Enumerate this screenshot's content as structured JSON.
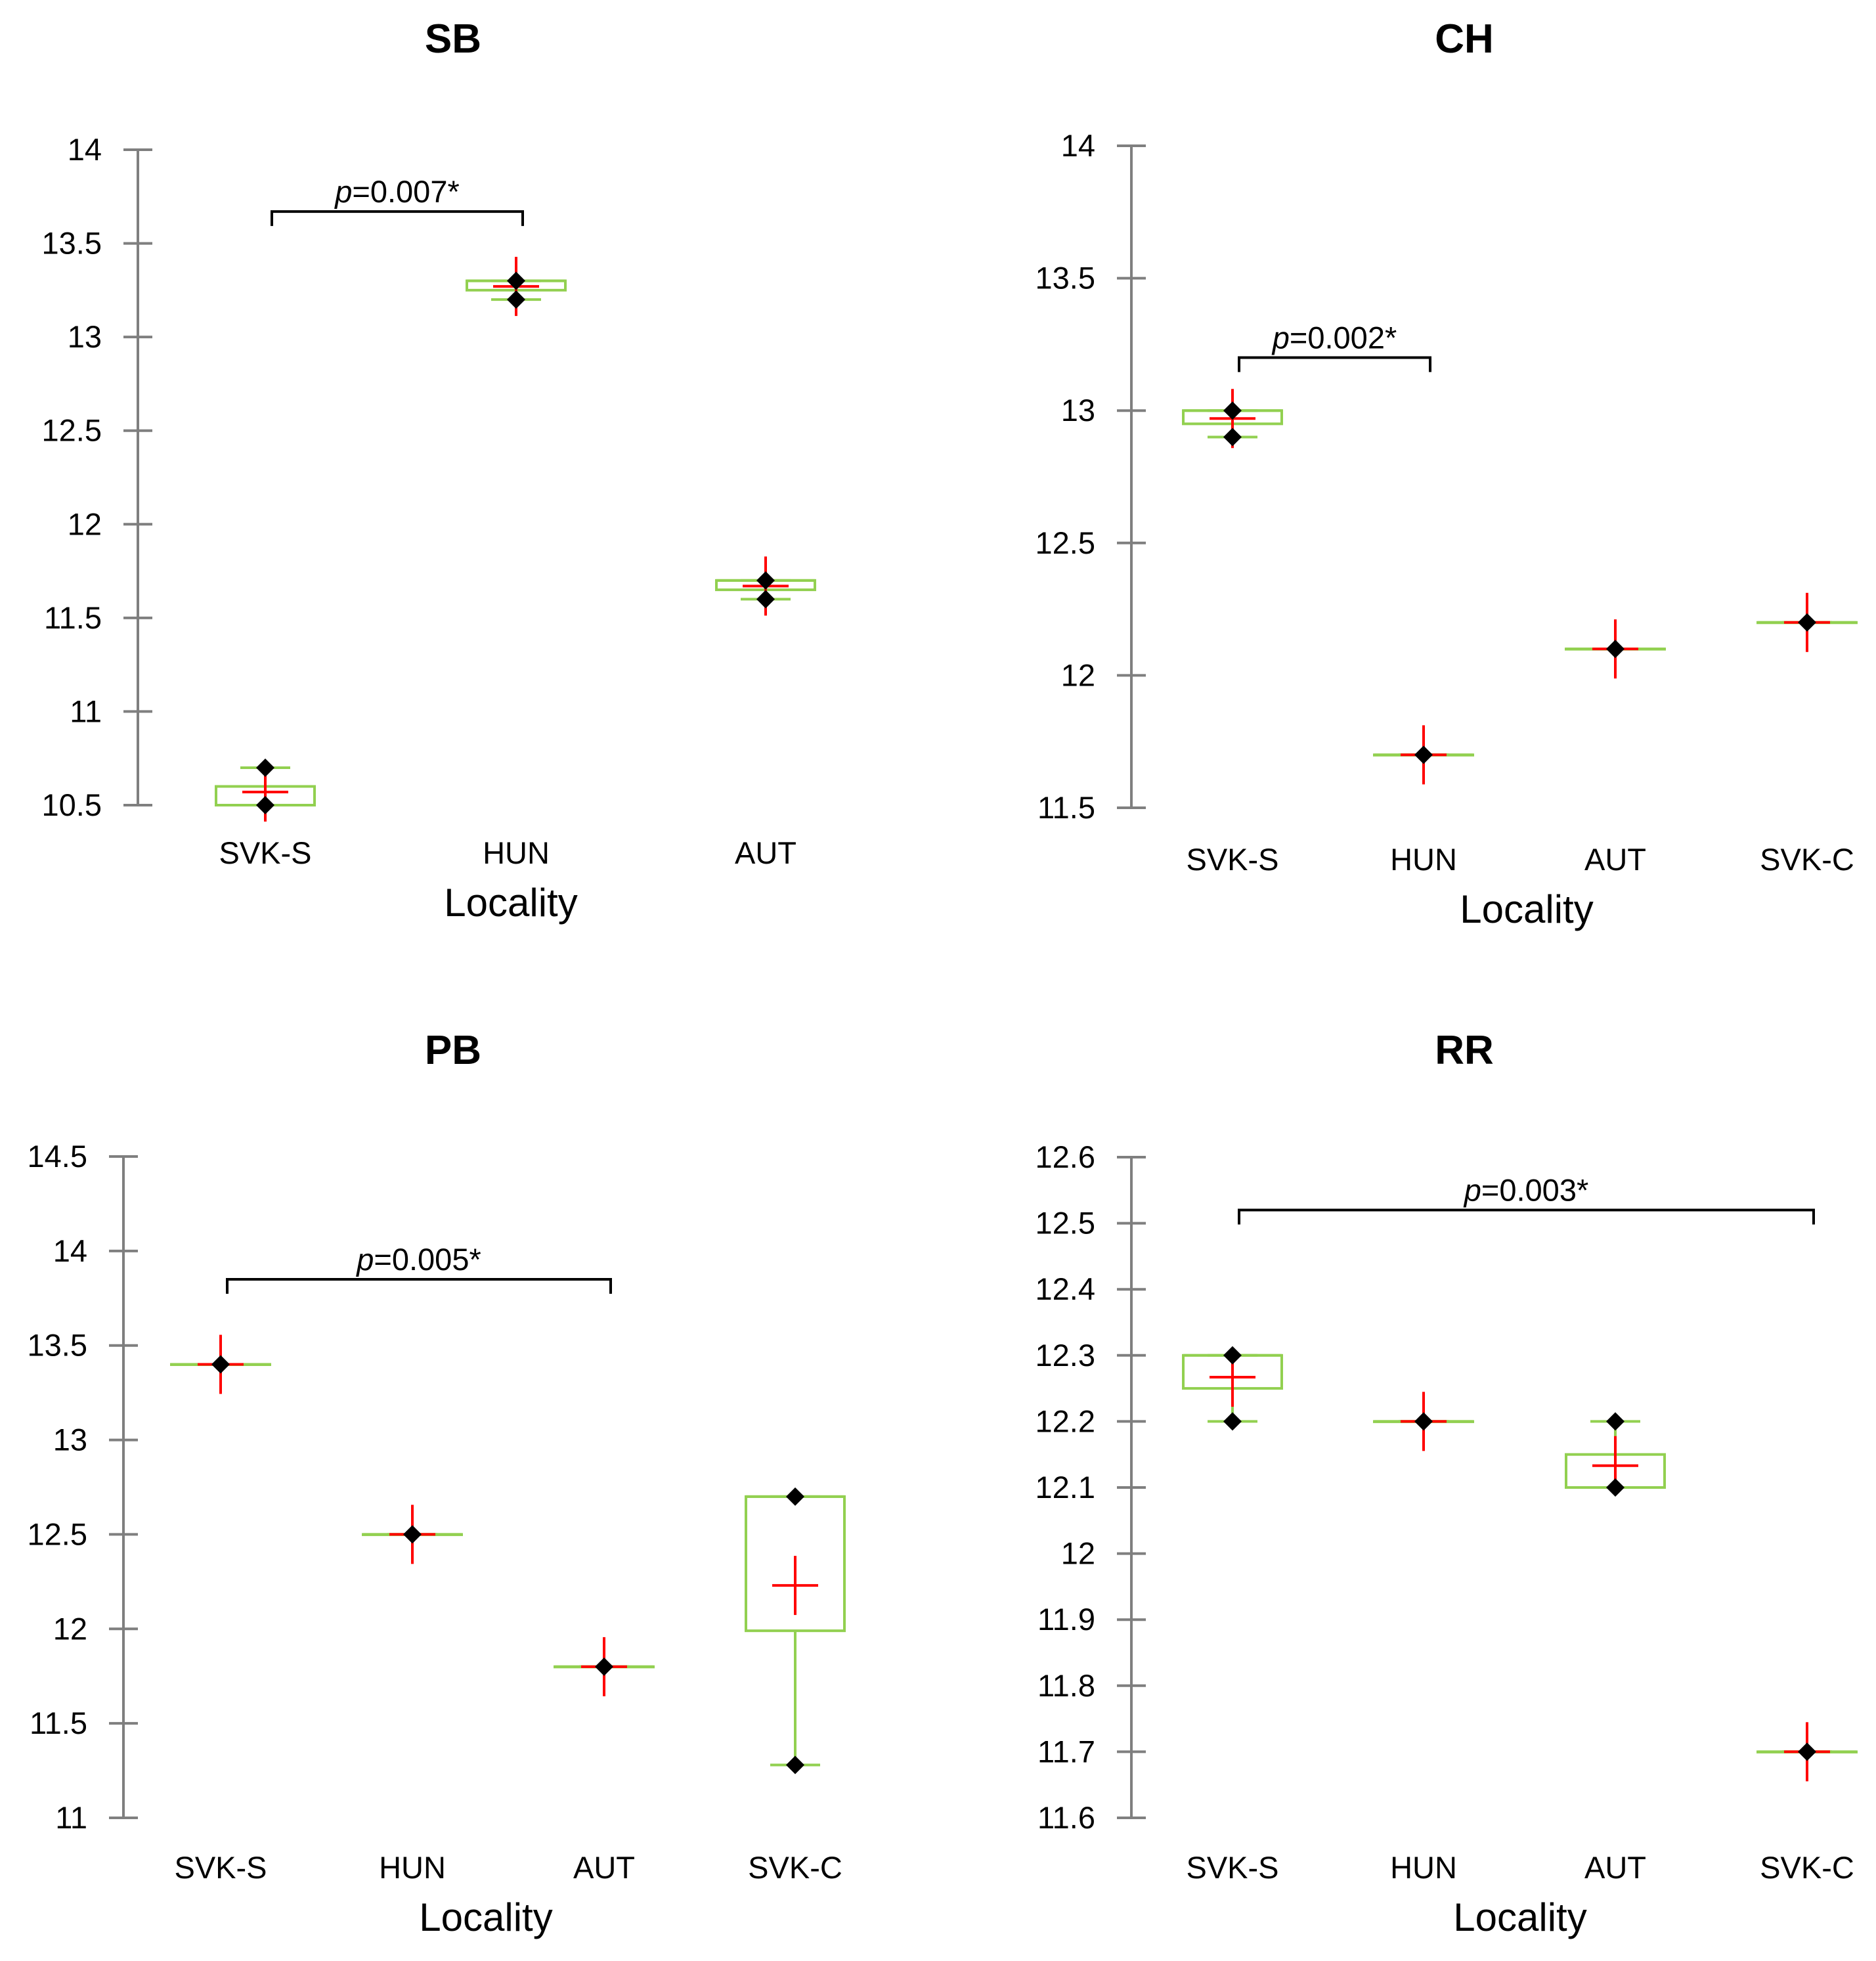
{
  "colors": {
    "box": "#92d050",
    "mean": "#ff0000",
    "point": "#000000",
    "axis": "#7f7f7f",
    "bracket": "#000000"
  },
  "chart_data": [
    {
      "type": "box",
      "title": "SB",
      "xlabel": "Locality",
      "ylabel": "",
      "ylim": [
        10.5,
        14
      ],
      "yticks": [
        "10.5",
        "11",
        "11.5",
        "12",
        "12.5",
        "13",
        "13.5",
        "14"
      ],
      "categories": [
        "SVK-S",
        "HUN",
        "AUT"
      ],
      "boxes": [
        {
          "min": 10.5,
          "q1": 10.5,
          "median": 10.5,
          "q3": 10.6,
          "max": 10.7,
          "mean": 10.57,
          "points": [
            10.7,
            10.5
          ]
        },
        {
          "min": 13.2,
          "q1": 13.25,
          "median": 13.3,
          "q3": 13.3,
          "max": 13.3,
          "mean": 13.27,
          "points": [
            13.3,
            13.2
          ]
        },
        {
          "min": 11.6,
          "q1": 11.65,
          "median": 11.7,
          "q3": 11.7,
          "max": 11.7,
          "mean": 11.67,
          "points": [
            11.7,
            11.6
          ]
        }
      ],
      "annotation": {
        "text": "p=0.007*",
        "from": 0,
        "to": 1,
        "y": 13.67
      }
    },
    {
      "type": "box",
      "title": "CH",
      "xlabel": "Locality",
      "ylabel": "",
      "ylim": [
        11.5,
        14
      ],
      "yticks": [
        "11.5",
        "12",
        "12.5",
        "13",
        "13.5",
        "14"
      ],
      "categories": [
        "SVK-S",
        "HUN",
        "AUT",
        "SVK-C"
      ],
      "boxes": [
        {
          "min": 12.9,
          "q1": 12.95,
          "median": 13.0,
          "q3": 13.0,
          "max": 13.0,
          "mean": 12.97,
          "points": [
            13.0,
            12.9
          ]
        },
        {
          "min": 11.7,
          "q1": 11.7,
          "median": 11.7,
          "q3": 11.7,
          "max": 11.7,
          "mean": 11.7,
          "points": [
            11.7
          ]
        },
        {
          "min": 12.1,
          "q1": 12.1,
          "median": 12.1,
          "q3": 12.1,
          "max": 12.1,
          "mean": 12.1,
          "points": [
            12.1
          ]
        },
        {
          "min": 12.2,
          "q1": 12.2,
          "median": 12.2,
          "q3": 12.2,
          "max": 12.2,
          "mean": 12.2,
          "points": [
            12.2
          ]
        }
      ],
      "annotation": {
        "text": "p=0.002*",
        "from": 0,
        "to": 1,
        "y": 13.2
      }
    },
    {
      "type": "box",
      "title": "PB",
      "xlabel": "Locality",
      "ylabel": "",
      "ylim": [
        11,
        14.5
      ],
      "yticks": [
        "11",
        "11.5",
        "12",
        "12.5",
        "13",
        "13.5",
        "14",
        "14.5"
      ],
      "categories": [
        "SVK-S",
        "HUN",
        "AUT",
        "SVK-C"
      ],
      "boxes": [
        {
          "min": 13.4,
          "q1": 13.4,
          "median": 13.4,
          "q3": 13.4,
          "max": 13.4,
          "mean": 13.4,
          "points": [
            13.4
          ]
        },
        {
          "min": 12.5,
          "q1": 12.5,
          "median": 12.5,
          "q3": 12.5,
          "max": 12.5,
          "mean": 12.5,
          "points": [
            12.5
          ]
        },
        {
          "min": 11.8,
          "q1": 11.8,
          "median": 11.8,
          "q3": 11.8,
          "max": 11.8,
          "mean": 11.8,
          "points": [
            11.8
          ]
        },
        {
          "min": 11.28,
          "q1": 11.99,
          "median": 12.7,
          "q3": 12.7,
          "max": 12.7,
          "mean": 12.23,
          "points": [
            12.7,
            11.28
          ]
        }
      ],
      "annotation": {
        "text": "p=0.005*",
        "from": 0,
        "to": 2,
        "y": 13.85
      }
    },
    {
      "type": "box",
      "title": "RR",
      "xlabel": "Locality",
      "ylabel": "",
      "ylim": [
        11.6,
        12.6
      ],
      "yticks": [
        "11.6",
        "11.7",
        "11.8",
        "11.9",
        "12",
        "12.1",
        "12.2",
        "12.3",
        "12.4",
        "12.5",
        "12.6"
      ],
      "categories": [
        "SVK-S",
        "HUN",
        "AUT",
        "SVK-C"
      ],
      "boxes": [
        {
          "min": 12.2,
          "q1": 12.25,
          "median": 12.3,
          "q3": 12.3,
          "max": 12.3,
          "mean": 12.267,
          "points": [
            12.3,
            12.2
          ]
        },
        {
          "min": 12.2,
          "q1": 12.2,
          "median": 12.2,
          "q3": 12.2,
          "max": 12.2,
          "mean": 12.2,
          "points": [
            12.2
          ]
        },
        {
          "min": 12.1,
          "q1": 12.1,
          "median": 12.1,
          "q3": 12.15,
          "max": 12.2,
          "mean": 12.133,
          "points": [
            12.2,
            12.1
          ]
        },
        {
          "min": 11.7,
          "q1": 11.7,
          "median": 11.7,
          "q3": 11.7,
          "max": 11.7,
          "mean": 11.7,
          "points": [
            11.7
          ]
        }
      ],
      "annotation": {
        "text": "p=0.003*",
        "from": 0,
        "to": 3,
        "y": 12.52
      }
    }
  ]
}
